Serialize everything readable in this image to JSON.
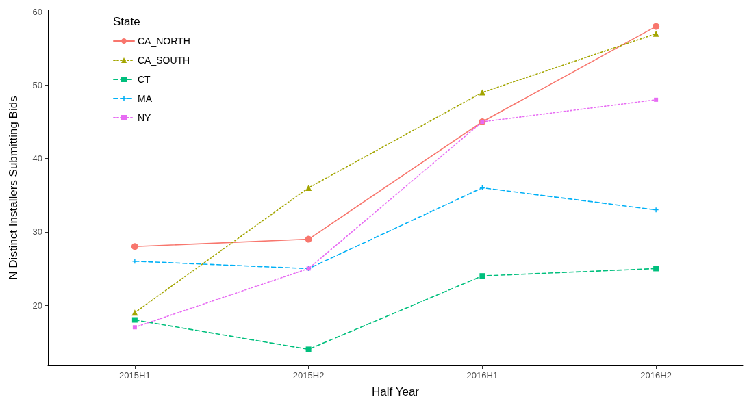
{
  "chart_data": {
    "type": "line",
    "xlabel": "Half Year",
    "ylabel": "N Distinct Installers Submitting Bids",
    "legend_title": "State",
    "categories": [
      "2015H1",
      "2015H2",
      "2016H1",
      "2016H2"
    ],
    "series": [
      {
        "name": "CA_NORTH",
        "color": "#f8766d",
        "values": [
          28,
          29,
          45,
          58
        ],
        "marker": "circle",
        "line_style": "solid"
      },
      {
        "name": "CA_SOUTH",
        "color": "#a3a500",
        "values": [
          19,
          36,
          49,
          57
        ],
        "marker": "triangle",
        "line_style": "dotted"
      },
      {
        "name": "CT",
        "color": "#00bf7d",
        "values": [
          18,
          14,
          24,
          25
        ],
        "marker": "square",
        "line_style": "dashed"
      },
      {
        "name": "MA",
        "color": "#00b0f6",
        "values": [
          26,
          25,
          36,
          33
        ],
        "marker": "cross",
        "line_style": "dashed"
      },
      {
        "name": "NY",
        "color": "#e76bf3",
        "values": [
          17,
          25,
          45,
          48
        ],
        "marker": "square",
        "line_style": "dotted"
      }
    ],
    "ylim": [
      11.8,
      60.2
    ],
    "yticks": [
      20,
      30,
      40,
      50,
      60
    ],
    "grid": false,
    "legend": "top left"
  }
}
